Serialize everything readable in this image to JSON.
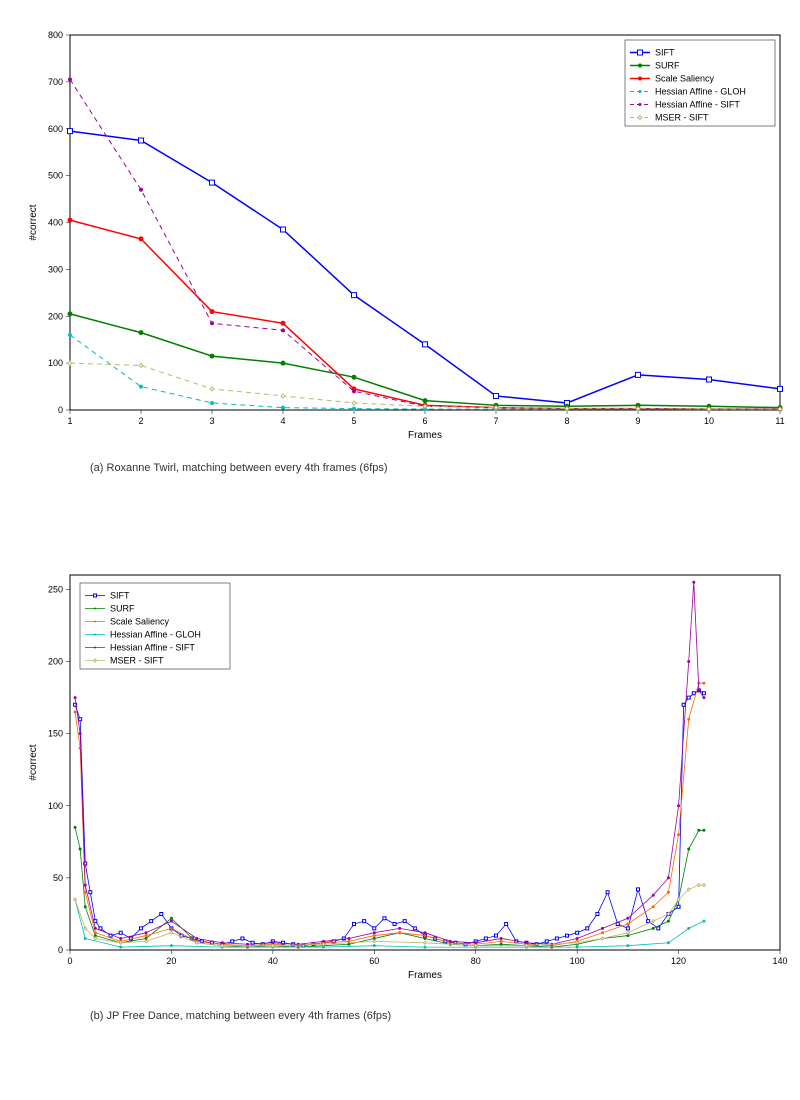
{
  "chart_a": {
    "type": "line",
    "title": "",
    "xlabel": "Frames",
    "ylabel": "#correct",
    "label_fontsize": 10,
    "tick_fontsize": 9,
    "xlim": [
      1,
      11
    ],
    "ylim": [
      0,
      800
    ],
    "xtick_step": 1,
    "ytick_step": 100,
    "background_color": "#ffffff",
    "axis_color": "#000000",
    "axis_linewidth": 1,
    "grid": false,
    "legend": {
      "position": "top-right",
      "border_color": "#000000",
      "border_width": 0.5,
      "background": "#ffffff",
      "fontsize": 9,
      "text_color": "#000000"
    },
    "series": [
      {
        "name": "SIFT",
        "color": "#0000ff",
        "linestyle": "solid",
        "linewidth": 1.5,
        "marker": "square",
        "marker_size": 5,
        "x": [
          1,
          2,
          3,
          4,
          5,
          6,
          7,
          8,
          9,
          10,
          11
        ],
        "y": [
          595,
          575,
          485,
          385,
          245,
          140,
          30,
          15,
          75,
          65,
          45
        ]
      },
      {
        "name": "SURF",
        "color": "#008000",
        "linestyle": "solid",
        "linewidth": 1.5,
        "marker": "dot",
        "marker_size": 4,
        "x": [
          1,
          2,
          3,
          4,
          5,
          6,
          7,
          8,
          9,
          10,
          11
        ],
        "y": [
          205,
          165,
          115,
          100,
          70,
          20,
          10,
          8,
          10,
          8,
          5
        ]
      },
      {
        "name": "Scale Saliency",
        "color": "#ff0000",
        "linestyle": "solid",
        "linewidth": 1.5,
        "marker": "dot",
        "marker_size": 4,
        "x": [
          1,
          2,
          3,
          4,
          5,
          6,
          7,
          8,
          9,
          10,
          11
        ],
        "y": [
          405,
          365,
          210,
          185,
          45,
          10,
          5,
          3,
          3,
          2,
          2
        ]
      },
      {
        "name": "Hessian Affine - GLOH",
        "color": "#00bfbf",
        "linestyle": "dashed",
        "linewidth": 1,
        "marker": "dot",
        "marker_size": 3,
        "x": [
          1,
          2,
          3,
          4,
          5,
          6,
          7,
          8,
          9,
          10,
          11
        ],
        "y": [
          160,
          50,
          15,
          5,
          3,
          2,
          2,
          2,
          2,
          2,
          2
        ]
      },
      {
        "name": "Hessian Affine - SIFT",
        "color": "#a000a0",
        "linestyle": "dashed",
        "linewidth": 1,
        "marker": "dot",
        "marker_size": 3,
        "x": [
          1,
          2,
          3,
          4,
          5,
          6,
          7,
          8,
          9,
          10,
          11
        ],
        "y": [
          705,
          470,
          185,
          170,
          40,
          8,
          5,
          3,
          3,
          2,
          2
        ]
      },
      {
        "name": "MSER - SIFT",
        "color": "#bdb76b",
        "linestyle": "dashed",
        "linewidth": 1,
        "marker": "diamond",
        "marker_size": 4,
        "x": [
          1,
          2,
          3,
          4,
          5,
          6,
          7,
          8,
          9,
          10,
          11
        ],
        "y": [
          100,
          95,
          45,
          30,
          15,
          8,
          5,
          3,
          3,
          2,
          2
        ]
      }
    ],
    "caption": "(a) Roxanne Twirl, matching between every 4th frames (6fps)"
  },
  "chart_b": {
    "type": "line",
    "title": "",
    "xlabel": "Frames",
    "ylabel": "#correct",
    "label_fontsize": 10,
    "tick_fontsize": 9,
    "xlim": [
      0,
      140
    ],
    "ylim": [
      0,
      260
    ],
    "xtick_step": 20,
    "ytick_step": 50,
    "background_color": "#ffffff",
    "axis_color": "#000000",
    "axis_linewidth": 1,
    "grid": false,
    "legend": {
      "position": "top-left",
      "border_color": "#000000",
      "border_width": 0.5,
      "background": "#ffffff",
      "fontsize": 9,
      "text_color": "#000000"
    },
    "series": [
      {
        "name": "SIFT",
        "color": "#0000ff",
        "linestyle": "solid",
        "linewidth": 0.8,
        "marker": "square",
        "marker_size": 3,
        "x": [
          1,
          2,
          3,
          4,
          5,
          6,
          8,
          10,
          12,
          14,
          16,
          18,
          20,
          22,
          24,
          26,
          28,
          30,
          32,
          34,
          36,
          38,
          40,
          42,
          44,
          46,
          48,
          50,
          52,
          54,
          56,
          58,
          60,
          62,
          64,
          66,
          68,
          70,
          72,
          74,
          76,
          78,
          80,
          82,
          84,
          86,
          88,
          90,
          92,
          94,
          96,
          98,
          100,
          102,
          104,
          106,
          108,
          110,
          112,
          114,
          116,
          118,
          120,
          121,
          122,
          123,
          124,
          125
        ],
        "y": [
          170,
          160,
          60,
          40,
          20,
          15,
          10,
          12,
          8,
          15,
          20,
          25,
          15,
          10,
          8,
          6,
          5,
          4,
          6,
          8,
          5,
          4,
          6,
          5,
          4,
          3,
          4,
          5,
          6,
          8,
          18,
          20,
          15,
          22,
          18,
          20,
          15,
          10,
          8,
          6,
          5,
          4,
          6,
          8,
          10,
          18,
          6,
          5,
          4,
          6,
          8,
          10,
          12,
          15,
          25,
          40,
          18,
          15,
          42,
          20,
          15,
          25,
          30,
          170,
          175,
          178,
          180,
          178
        ]
      },
      {
        "name": "SURF",
        "color": "#008000",
        "linestyle": "solid",
        "linewidth": 0.8,
        "marker": "dot",
        "marker_size": 2,
        "x": [
          1,
          2,
          3,
          5,
          10,
          15,
          20,
          25,
          30,
          35,
          40,
          45,
          50,
          55,
          60,
          65,
          70,
          75,
          80,
          85,
          90,
          95,
          100,
          105,
          110,
          115,
          118,
          120,
          122,
          124,
          125
        ],
        "y": [
          85,
          70,
          30,
          10,
          5,
          8,
          22,
          5,
          3,
          2,
          3,
          2,
          3,
          4,
          8,
          12,
          8,
          4,
          3,
          4,
          3,
          2,
          4,
          8,
          10,
          15,
          20,
          35,
          70,
          83,
          83
        ]
      },
      {
        "name": "Scale Saliency",
        "color": "#ff6600",
        "linestyle": "solid",
        "linewidth": 0.8,
        "marker": "dot",
        "marker_size": 2,
        "x": [
          1,
          2,
          3,
          5,
          10,
          15,
          20,
          25,
          30,
          35,
          40,
          45,
          50,
          55,
          60,
          65,
          70,
          75,
          80,
          85,
          90,
          95,
          100,
          105,
          110,
          115,
          118,
          120,
          122,
          124,
          125
        ],
        "y": [
          165,
          140,
          40,
          12,
          6,
          10,
          15,
          6,
          4,
          3,
          4,
          3,
          5,
          6,
          10,
          12,
          10,
          5,
          4,
          6,
          4,
          3,
          6,
          12,
          18,
          30,
          40,
          80,
          160,
          185,
          185
        ]
      },
      {
        "name": "Hessian Affine - GLOH",
        "color": "#00bfbf",
        "linestyle": "solid",
        "linewidth": 0.8,
        "marker": "dot",
        "marker_size": 2,
        "x": [
          1,
          3,
          10,
          20,
          30,
          40,
          50,
          60,
          70,
          80,
          90,
          100,
          110,
          118,
          122,
          125
        ],
        "y": [
          35,
          8,
          2,
          3,
          2,
          2,
          2,
          3,
          2,
          2,
          2,
          2,
          3,
          5,
          15,
          20
        ]
      },
      {
        "name": "Hessian Affine - SIFT",
        "color": "#a000a0",
        "linestyle": "solid",
        "linewidth": 0.8,
        "marker": "dot",
        "marker_size": 2,
        "x": [
          1,
          2,
          3,
          5,
          10,
          15,
          20,
          25,
          30,
          35,
          40,
          45,
          50,
          55,
          60,
          65,
          70,
          75,
          80,
          85,
          90,
          95,
          100,
          105,
          110,
          115,
          118,
          120,
          122,
          123,
          124,
          125
        ],
        "y": [
          175,
          150,
          45,
          15,
          8,
          12,
          20,
          8,
          5,
          4,
          5,
          4,
          6,
          8,
          12,
          15,
          12,
          6,
          5,
          8,
          5,
          4,
          8,
          15,
          22,
          38,
          50,
          100,
          200,
          255,
          180,
          175
        ]
      },
      {
        "name": "MSER - SIFT",
        "color": "#bdb76b",
        "linestyle": "solid",
        "linewidth": 0.8,
        "marker": "diamond",
        "marker_size": 3,
        "x": [
          1,
          3,
          5,
          10,
          15,
          20,
          25,
          30,
          40,
          50,
          60,
          70,
          80,
          90,
          100,
          105,
          110,
          115,
          118,
          120,
          122,
          124,
          125
        ],
        "y": [
          35,
          15,
          8,
          5,
          6,
          12,
          5,
          3,
          3,
          4,
          6,
          5,
          3,
          3,
          5,
          8,
          12,
          20,
          25,
          35,
          42,
          45,
          45
        ]
      }
    ],
    "caption": "(b) JP Free Dance, matching between every 4th frames (6fps)"
  }
}
